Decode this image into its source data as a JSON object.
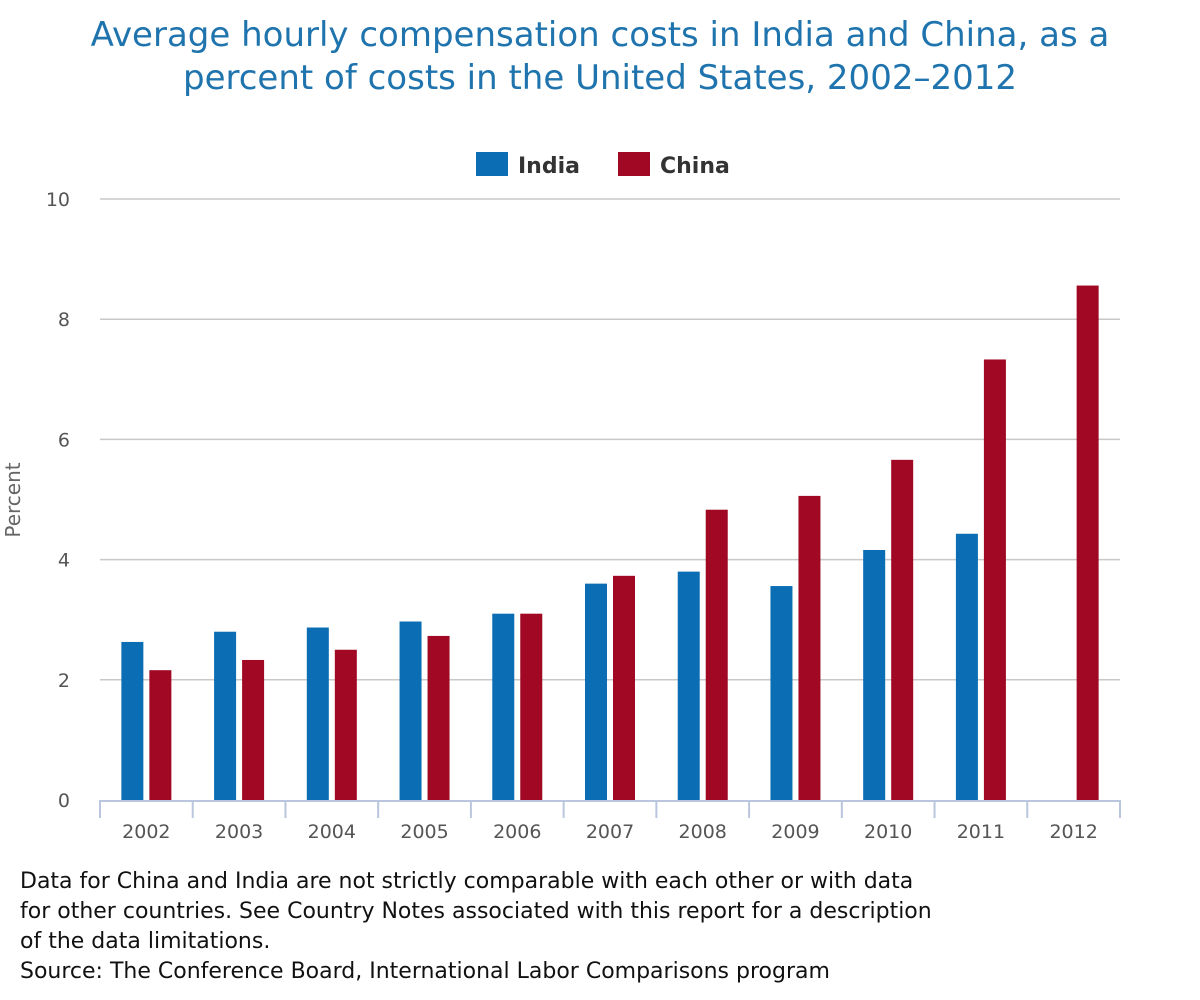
{
  "chart_data": {
    "type": "bar",
    "title": "Average hourly compensation costs in India and China, as a percent of costs in the United States, 2002–2012",
    "title_lines": [
      "Average hourly compensation costs in India and China, as a",
      "percent of costs in the United States, 2002–2012"
    ],
    "xlabel": "",
    "ylabel": "Percent",
    "ylim": [
      0,
      10
    ],
    "yticks": [
      0,
      2,
      4,
      6,
      8,
      10
    ],
    "grid": true,
    "legend_position": "top-center",
    "categories": [
      "2002",
      "2003",
      "2004",
      "2005",
      "2006",
      "2007",
      "2008",
      "2009",
      "2010",
      "2011",
      "2012"
    ],
    "series": [
      {
        "name": "India",
        "color": "#0b6db4",
        "values": [
          2.63,
          2.8,
          2.87,
          2.97,
          3.1,
          3.6,
          3.8,
          3.56,
          4.16,
          4.43,
          null
        ]
      },
      {
        "name": "China",
        "color": "#a00823",
        "values": [
          2.16,
          2.33,
          2.5,
          2.73,
          3.1,
          3.73,
          4.83,
          5.06,
          5.66,
          7.33,
          8.56
        ]
      }
    ]
  },
  "notes": {
    "lines": [
      "Data for China and India are not strictly comparable with each other or with data",
      "for other countries. See Country Notes associated with this report for a description",
      "of the data limitations.",
      "Source: The Conference Board, International Labor Comparisons program"
    ]
  }
}
